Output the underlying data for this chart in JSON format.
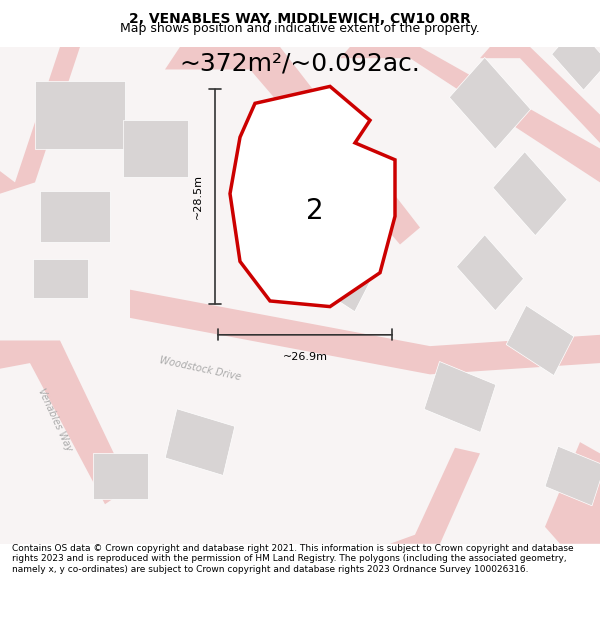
{
  "title": "2, VENABLES WAY, MIDDLEWICH, CW10 0RR",
  "subtitle": "Map shows position and indicative extent of the property.",
  "area_text": "~372m²/~0.092ac.",
  "label": "2",
  "dim_width": "~26.9m",
  "dim_height": "~28.5m",
  "footer": "Contains OS data © Crown copyright and database right 2021. This information is subject to Crown copyright and database rights 2023 and is reproduced with the permission of HM Land Registry. The polygons (including the associated geometry, namely x, y co-ordinates) are subject to Crown copyright and database rights 2023 Ordnance Survey 100026316.",
  "bg_color": "#f5f0f0",
  "map_bg": "#f8f4f4",
  "road_color": "#f0c8c8",
  "building_color": "#d8d4d4",
  "plot_color": "#ffffff",
  "plot_edge_color": "#cc0000",
  "dim_line_color": "#333333",
  "road_label_color": "#aaaaaa",
  "title_fontsize": 10,
  "subtitle_fontsize": 9,
  "area_fontsize": 18,
  "label_fontsize": 20,
  "footer_fontsize": 6.5
}
